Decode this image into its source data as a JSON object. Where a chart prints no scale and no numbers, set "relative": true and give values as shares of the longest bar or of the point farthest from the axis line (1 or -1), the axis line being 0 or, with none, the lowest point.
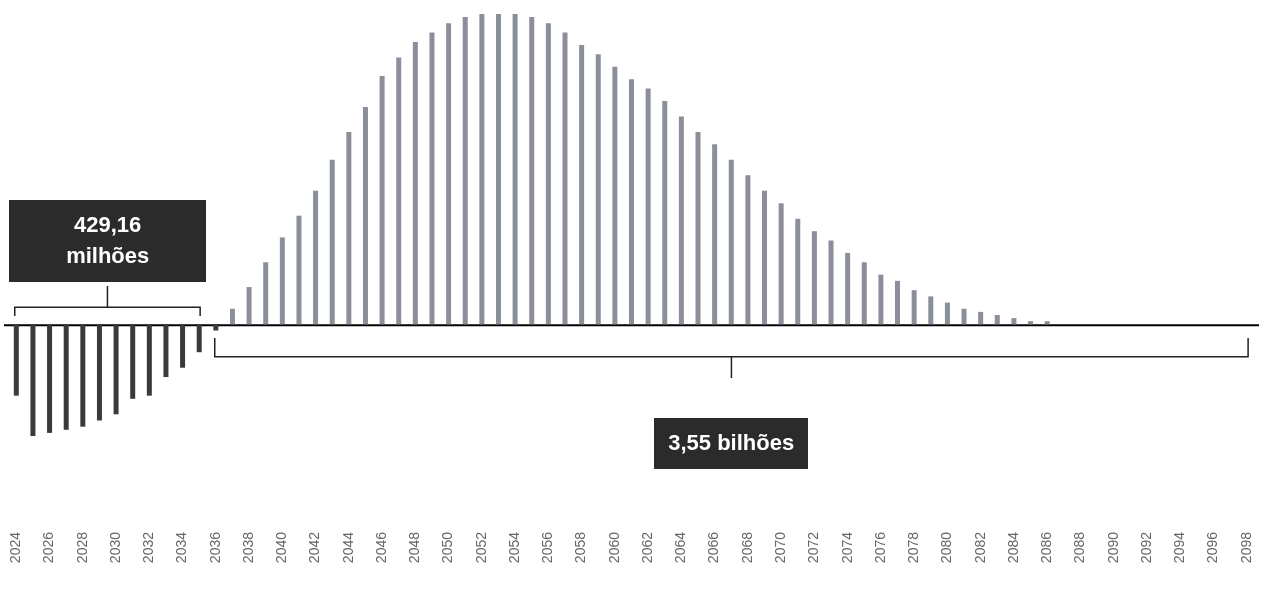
{
  "chart_data": {
    "type": "bar",
    "relative": true,
    "categories": [
      "2024",
      null,
      "2026",
      null,
      "2028",
      null,
      "2030",
      null,
      "2032",
      null,
      "2034",
      null,
      "2036",
      null,
      "2038",
      null,
      "2040",
      null,
      "2042",
      null,
      "2044",
      null,
      "2046",
      null,
      "2048",
      null,
      "2050",
      null,
      "2052",
      null,
      "2054",
      null,
      "2056",
      null,
      "2058",
      null,
      "2060",
      null,
      "2062",
      null,
      "2064",
      null,
      "2066",
      null,
      "2068",
      null,
      "2070",
      null,
      "2072",
      null,
      "2074",
      null,
      "2076",
      null,
      "2078",
      null,
      "2080",
      null,
      "2082",
      null,
      "2084",
      null,
      "2086",
      null,
      "2088",
      null,
      "2090",
      null,
      "2092",
      null,
      "2094",
      null,
      "2096",
      null,
      "2098"
    ],
    "values": [
      -0.23,
      -0.36,
      -0.35,
      -0.34,
      -0.33,
      -0.31,
      -0.29,
      -0.24,
      -0.23,
      -0.17,
      -0.14,
      -0.09,
      -0.02,
      0.05,
      0.12,
      0.2,
      0.28,
      0.35,
      0.43,
      0.53,
      0.62,
      0.7,
      0.8,
      0.86,
      0.91,
      0.94,
      0.97,
      0.99,
      1,
      1,
      1,
      0.99,
      0.97,
      0.94,
      0.9,
      0.87,
      0.83,
      0.79,
      0.76,
      0.72,
      0.67,
      0.62,
      0.58,
      0.53,
      0.48,
      0.43,
      0.39,
      0.34,
      0.3,
      0.27,
      0.23,
      0.2,
      0.16,
      0.14,
      0.11,
      0.09,
      0.07,
      0.05,
      0.04,
      0.03,
      0.02,
      0.01,
      0.01,
      0,
      0,
      0,
      0,
      0,
      0,
      0,
      0,
      0,
      0,
      0,
      0
    ],
    "colors": [
      "#3a3a3a",
      "#3a3a3a",
      "#3a3a3a",
      "#3a3a3a",
      "#3a3a3a",
      "#3a3a3a",
      "#3a3a3a",
      "#3a3a3a",
      "#3a3a3a",
      "#3a3a3a",
      "#3a3a3a",
      "#3a3a3a",
      "#3a3a3a",
      "#8a8f99",
      "#8a8f99",
      "#8a8f99",
      "#8a8f99",
      "#8a8f99",
      "#8a8f99",
      "#8a8f99",
      "#8a8f99",
      "#8a8f99",
      "#8a8f99",
      "#8a8f99",
      "#8a8f99",
      "#8a8f99",
      "#8a8f99",
      "#8a8f99",
      "#8a8f99",
      "#8a8f99",
      "#8a8f99",
      "#8a8f99",
      "#8a8f99",
      "#8a8f99",
      "#8a8f99",
      "#8a8f99",
      "#8a8f99",
      "#8a8f99",
      "#8a8f99",
      "#8a8f99",
      "#8a8f99",
      "#8a8f99",
      "#8a8f99",
      "#8a8f99",
      "#8a8f99",
      "#8a8f99",
      "#8a8f99",
      "#8a8f99",
      "#8a8f99",
      "#8a8f99",
      "#8a8f99",
      "#8a8f99",
      "#8a8f99",
      "#8a8f99",
      "#8a8f99",
      "#8a8f99",
      "#8a8f99",
      "#8a8f99",
      "#8a8f99",
      "#8a8f99",
      "#8a8f99",
      "#8a8f99",
      "#8a8f99",
      "#8a8f99",
      "#8a8f99",
      "#8a8f99",
      "#8a8f99",
      "#8a8f99",
      "#8a8f99",
      "#8a8f99",
      "#8a8f99",
      "#8a8f99",
      "#8a8f99",
      "#8a8f99",
      "#8a8f99"
    ],
    "annotations": [
      "429,16 milhões",
      "3,55 bilhões"
    ],
    "legend": false,
    "grid": false
  }
}
